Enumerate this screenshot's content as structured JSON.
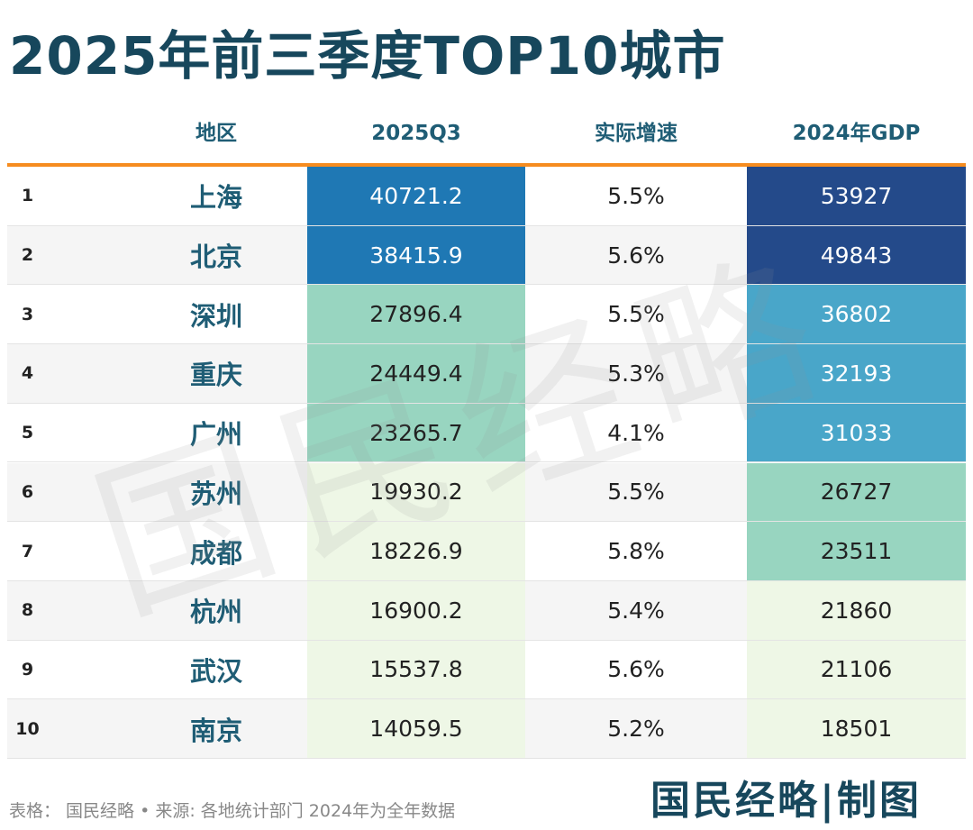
{
  "title": "2025年前三季度TOP10城市",
  "chart_data": {
    "type": "table",
    "columns": [
      "",
      "地区",
      "2025Q3",
      "实际增速",
      "2024年GDP"
    ],
    "rows": [
      {
        "rank": "1",
        "city": "上海",
        "q3": "40721.2",
        "growth": "5.5%",
        "gdp2024": "53927"
      },
      {
        "rank": "2",
        "city": "北京",
        "q3": "38415.9",
        "growth": "5.6%",
        "gdp2024": "49843"
      },
      {
        "rank": "3",
        "city": "深圳",
        "q3": "27896.4",
        "growth": "5.5%",
        "gdp2024": "36802"
      },
      {
        "rank": "4",
        "city": "重庆",
        "q3": "24449.4",
        "growth": "5.3%",
        "gdp2024": "32193"
      },
      {
        "rank": "5",
        "city": "广州",
        "q3": "23265.7",
        "growth": "4.1%",
        "gdp2024": "31033"
      },
      {
        "rank": "6",
        "city": "苏州",
        "q3": "19930.2",
        "growth": "5.5%",
        "gdp2024": "26727"
      },
      {
        "rank": "7",
        "city": "成都",
        "q3": "18226.9",
        "growth": "5.8%",
        "gdp2024": "23511"
      },
      {
        "rank": "8",
        "city": "杭州",
        "q3": "16900.2",
        "growth": "5.4%",
        "gdp2024": "21860"
      },
      {
        "rank": "9",
        "city": "武汉",
        "q3": "15537.8",
        "growth": "5.6%",
        "gdp2024": "21106"
      },
      {
        "rank": "10",
        "city": "南京",
        "q3": "14059.5",
        "growth": "5.2%",
        "gdp2024": "18501"
      }
    ],
    "q3_colors": [
      "#1f78b4",
      "#1f78b4",
      "#98d5c0",
      "#98d5c0",
      "#98d5c0",
      "#eef7e6",
      "#eef7e6",
      "#eef7e6",
      "#eef7e6",
      "#eef7e6"
    ],
    "gdp_colors": [
      "#244a8a",
      "#244a8a",
      "#49a6c9",
      "#49a6c9",
      "#49a6c9",
      "#98d5c0",
      "#98d5c0",
      "#eef7e6",
      "#eef7e6",
      "#eef7e6"
    ],
    "header_rule_color": "#f68c1f"
  },
  "footer": "表格： 国民经略 • 来源: 各地统计部门 2024年为全年数据",
  "brand": "国民经略|制图",
  "watermark": "国民经略"
}
